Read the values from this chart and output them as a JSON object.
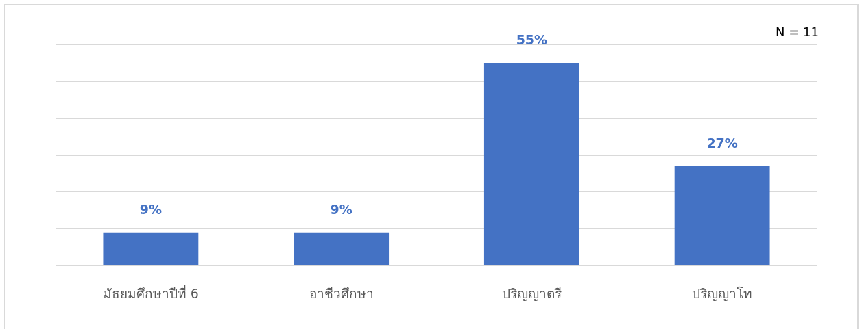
{
  "chart_data": {
    "type": "bar",
    "categories": [
      "มัธยมศึกษาปีที่ 6",
      "อาชีวศึกษา",
      "ปริญญาตรี",
      "ปริญญาโท"
    ],
    "values": [
      9,
      9,
      55,
      27
    ],
    "value_labels": [
      "9%",
      "9%",
      "55%",
      "27%"
    ],
    "color": "#4472c4",
    "ylim": [
      0,
      60
    ],
    "yticks": [
      {
        "value": 0,
        "label": null
      },
      {
        "value": 10,
        "label": null
      },
      {
        "value": 20,
        "label": null
      },
      {
        "value": 30,
        "label": null
      },
      {
        "value": 40,
        "label": null
      },
      {
        "value": 50,
        "label": null
      },
      {
        "value": 60,
        "label": null
      }
    ],
    "grid": "y",
    "tick_labels": "x",
    "legend": false,
    "annotations": [
      "N = 11"
    ]
  }
}
